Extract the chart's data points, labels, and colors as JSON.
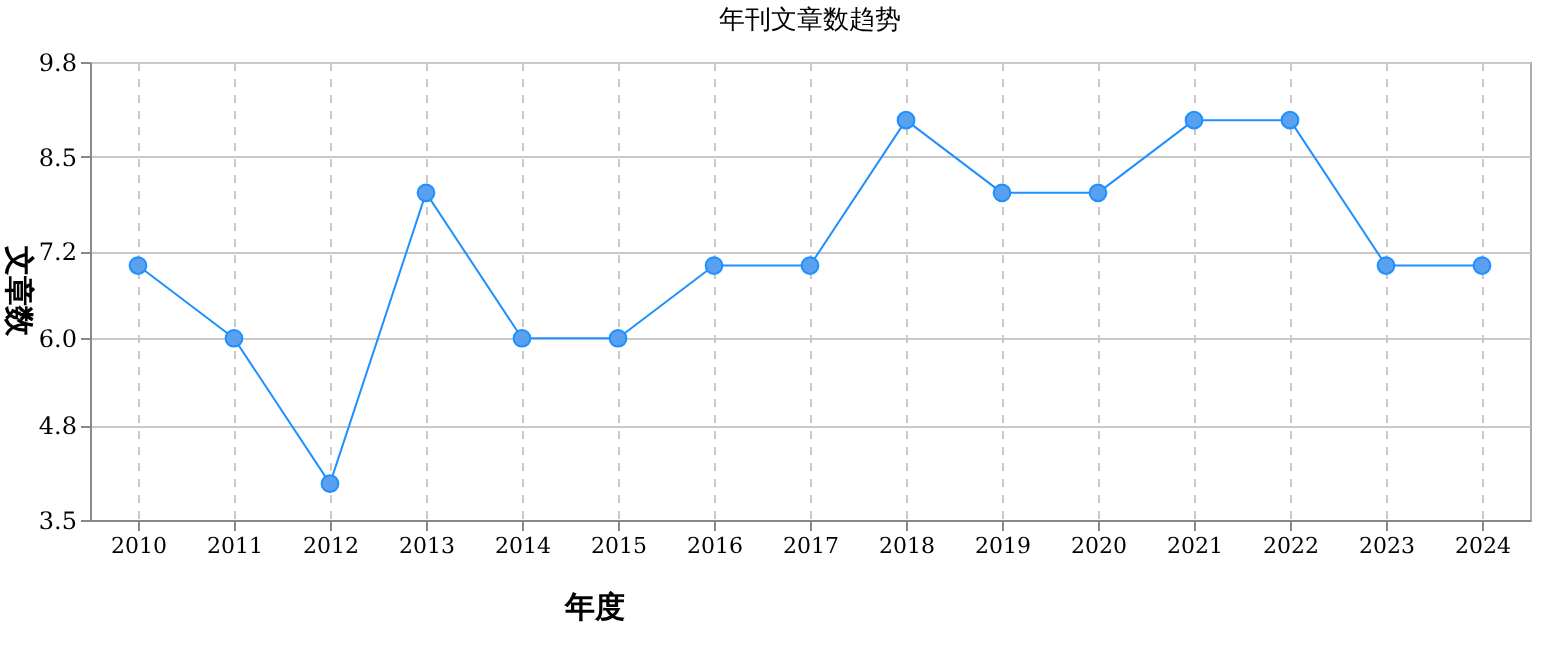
{
  "chart_data": {
    "type": "line",
    "title": "年刊文章数趋势",
    "xlabel": "年度",
    "ylabel": "文章数",
    "categories": [
      "2010",
      "2011",
      "2012",
      "2013",
      "2014",
      "2015",
      "2016",
      "2017",
      "2018",
      "2019",
      "2020",
      "2021",
      "2022",
      "2023",
      "2024"
    ],
    "series": [
      {
        "color": "#1e90ff",
        "values": [
          7,
          6,
          4,
          8,
          6,
          6,
          7,
          7,
          9,
          8,
          8,
          9,
          9,
          7,
          7
        ]
      }
    ],
    "ylim": [
      3.5,
      9.8
    ],
    "yticks": [
      3.5,
      4.8,
      {
        "value": 6.0,
        "label": "6.0"
      },
      7.2,
      8.5,
      9.8
    ],
    "grid": true,
    "marker": "circle",
    "line_style": "solid"
  }
}
